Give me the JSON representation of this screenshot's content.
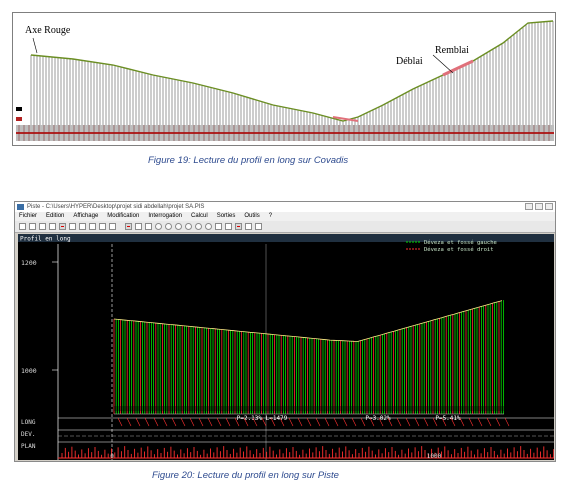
{
  "figure19": {
    "labels": {
      "axe_rouge": "Axe Rouge",
      "deblai": "Déblai",
      "remblai": "Remblai"
    },
    "caption": "Figure 19: Lecture du profil en long sur Covadis"
  },
  "figure20": {
    "window_title": "Piste - C:\\Users\\HYPER\\Desktop\\projet sidi abdellah\\projet SA.PIS",
    "menu": [
      "Fichier",
      "Edition",
      "Affichage",
      "Modification",
      "Interrogation",
      "Calcul",
      "Sorties",
      "Outils",
      "?"
    ],
    "panel_title": "Profil en long",
    "legend": [
      {
        "label": "Déveza et fossé gauche",
        "color": "#00e000"
      },
      {
        "label": "Déveza et fossé droit",
        "color": "#ff3030"
      }
    ],
    "y_labels": [
      "1200",
      "1000"
    ],
    "x_labels": [
      "0",
      "1000"
    ],
    "row_labels": [
      "LONG",
      "DEV.",
      "PLAN"
    ],
    "segments": [
      "P=2.13% L=1479",
      "P=3.02%",
      "P=5.41%"
    ],
    "caption": "Figure 20: Lecture du profil en long sur Piste",
    "colors": {
      "canvas": "#000000",
      "green": "#00e000",
      "red": "#ff3030",
      "grid": "#ffffff",
      "menu_bg": "#f0f0f0"
    }
  }
}
